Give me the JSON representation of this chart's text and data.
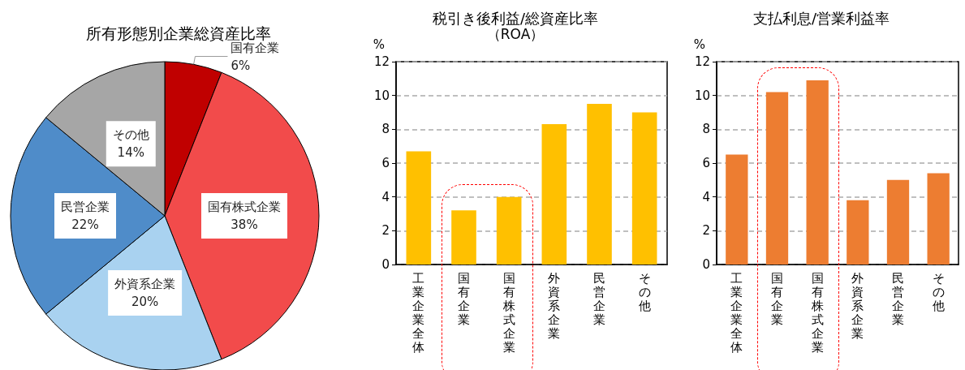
{
  "chart_data": [
    {
      "type": "pie",
      "title": "所有形態別企業総資産比率",
      "categories": [
        "国有企業",
        "国有株式企業",
        "外資系企業",
        "民営企業",
        "その他"
      ],
      "values": [
        6,
        38,
        20,
        22,
        14
      ],
      "value_labels": [
        "6%",
        "38%",
        "20%",
        "22%",
        "14%"
      ],
      "colors": [
        "#c00000",
        "#f24b4b",
        "#a9d2f0",
        "#4f8cc9",
        "#a6a6a6"
      ]
    },
    {
      "type": "bar",
      "title": "税引き後利益/総資産比率",
      "subtitle": "（ROA）",
      "ylabel": "%",
      "categories": [
        "工業企業全体",
        "国有企業",
        "国有株式企業",
        "外資系企業",
        "民営企業",
        "その他"
      ],
      "values": [
        6.7,
        3.2,
        4.0,
        8.3,
        9.5,
        9.0
      ],
      "color": "#ffc000",
      "ylim": [
        0,
        12
      ],
      "yticks": [
        0,
        2,
        4,
        6,
        8,
        10,
        12
      ],
      "grid": "y"
    },
    {
      "type": "bar",
      "title": "支払利息/営業利益率",
      "ylabel": "%",
      "categories": [
        "工業企業全体",
        "国有企業",
        "国有株式企業",
        "外資系企業",
        "民営企業",
        "その他"
      ],
      "values": [
        6.5,
        10.2,
        10.9,
        3.8,
        5.0,
        5.4
      ],
      "color": "#ed7d31",
      "ylim": [
        0,
        12
      ],
      "yticks": [
        0,
        2,
        4,
        6,
        8,
        10,
        12
      ],
      "grid": "y"
    }
  ]
}
